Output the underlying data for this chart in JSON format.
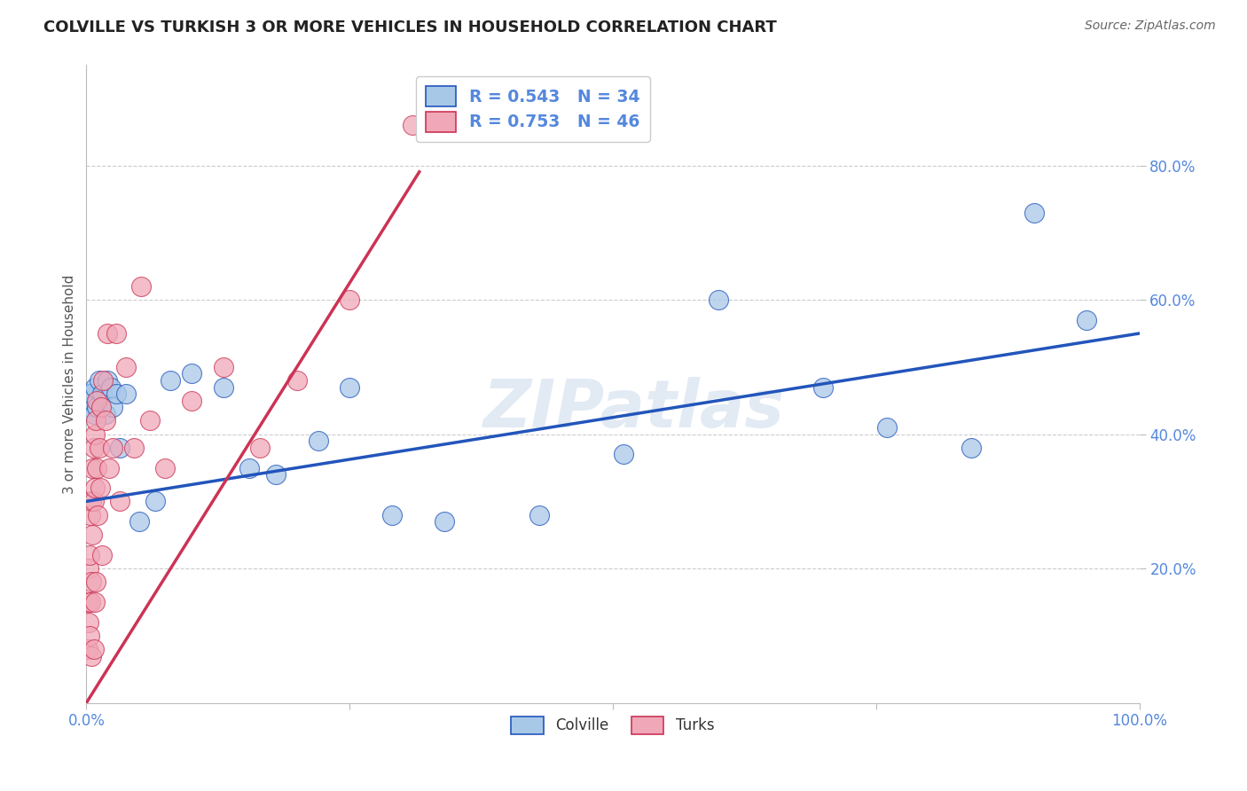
{
  "title": "COLVILLE VS TURKISH 3 OR MORE VEHICLES IN HOUSEHOLD CORRELATION CHART",
  "source": "Source: ZipAtlas.com",
  "ylabel": "3 or more Vehicles in Household",
  "watermark": "ZIPatlas",
  "colville_R": 0.543,
  "colville_N": 34,
  "turks_R": 0.753,
  "turks_N": 46,
  "blue_color": "#a8c8e8",
  "pink_color": "#f0a8b8",
  "blue_line_color": "#2255bb",
  "pink_line_color": "#cc3355",
  "colville_x": [
    0.002,
    0.003,
    0.005,
    0.007,
    0.008,
    0.01,
    0.012,
    0.015,
    0.018,
    0.02,
    0.023,
    0.025,
    0.028,
    0.032,
    0.038,
    0.05,
    0.065,
    0.08,
    0.1,
    0.13,
    0.155,
    0.18,
    0.22,
    0.25,
    0.29,
    0.34,
    0.43,
    0.51,
    0.6,
    0.7,
    0.76,
    0.84,
    0.9,
    0.95
  ],
  "colville_y": [
    0.46,
    0.44,
    0.46,
    0.43,
    0.47,
    0.44,
    0.48,
    0.46,
    0.43,
    0.48,
    0.47,
    0.44,
    0.46,
    0.38,
    0.46,
    0.27,
    0.3,
    0.48,
    0.49,
    0.47,
    0.35,
    0.34,
    0.39,
    0.47,
    0.28,
    0.27,
    0.28,
    0.37,
    0.6,
    0.47,
    0.41,
    0.38,
    0.73,
    0.57
  ],
  "turks_x": [
    0.001,
    0.001,
    0.002,
    0.002,
    0.003,
    0.003,
    0.004,
    0.004,
    0.005,
    0.005,
    0.005,
    0.006,
    0.006,
    0.007,
    0.007,
    0.007,
    0.008,
    0.008,
    0.008,
    0.009,
    0.009,
    0.01,
    0.01,
    0.011,
    0.012,
    0.013,
    0.014,
    0.015,
    0.016,
    0.018,
    0.02,
    0.022,
    0.025,
    0.028,
    0.032,
    0.038,
    0.045,
    0.052,
    0.06,
    0.075,
    0.1,
    0.13,
    0.165,
    0.2,
    0.25,
    0.31
  ],
  "turks_y": [
    0.08,
    0.15,
    0.12,
    0.2,
    0.1,
    0.22,
    0.15,
    0.28,
    0.07,
    0.3,
    0.18,
    0.35,
    0.25,
    0.08,
    0.38,
    0.3,
    0.15,
    0.4,
    0.32,
    0.42,
    0.18,
    0.35,
    0.45,
    0.28,
    0.38,
    0.32,
    0.44,
    0.22,
    0.48,
    0.42,
    0.55,
    0.35,
    0.38,
    0.55,
    0.3,
    0.5,
    0.38,
    0.62,
    0.42,
    0.35,
    0.45,
    0.5,
    0.38,
    0.48,
    0.6,
    0.86
  ],
  "xlim": [
    0.0,
    1.0
  ],
  "ylim": [
    0.0,
    0.95
  ],
  "xticks": [
    0.0,
    0.25,
    0.5,
    0.75,
    1.0
  ],
  "xtick_labels": [
    "0.0%",
    "",
    "",
    "",
    "100.0%"
  ],
  "yticks": [
    0.2,
    0.4,
    0.6,
    0.8
  ],
  "ytick_labels": [
    "20.0%",
    "40.0%",
    "60.0%",
    "80.0%"
  ],
  "grid_color": "#cccccc",
  "bg_color": "#ffffff",
  "title_color": "#222222",
  "tick_label_color": "#5588dd",
  "legend_text_color": "#5588dd",
  "blue_intercept": 0.3,
  "blue_slope": 0.25,
  "pink_intercept": 0.0,
  "pink_slope": 2.5
}
